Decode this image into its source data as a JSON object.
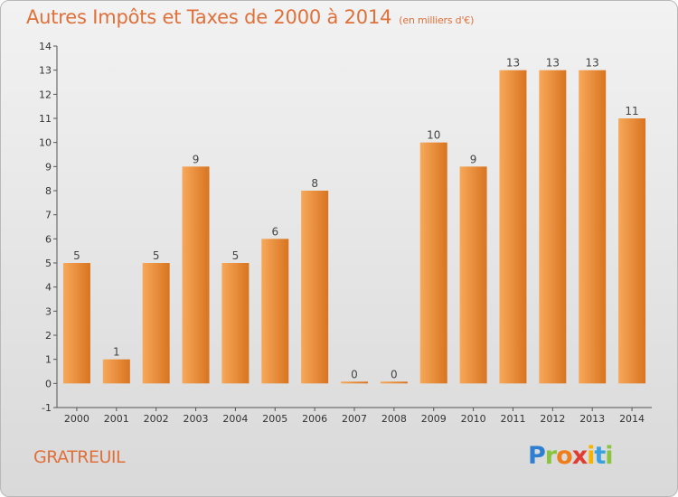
{
  "header": {
    "title": "Autres Impôts et Taxes de 2000 à 2014",
    "unit": "(en milliers d'€)"
  },
  "footer": {
    "commune": "GRATREUIL",
    "logo_letters": [
      "P",
      "r",
      "o",
      "x",
      "i",
      "t",
      "i"
    ]
  },
  "colors": {
    "bar_light": "#f7a85a",
    "bar_dark": "#d8741f",
    "title": "#e0703a"
  },
  "chart_data": {
    "type": "bar",
    "title": "Autres Impôts et Taxes de 2000 à 2014",
    "subtitle": "(en milliers d'€)",
    "xlabel": "",
    "ylabel": "",
    "categories": [
      "2000",
      "2001",
      "2002",
      "2003",
      "2004",
      "2005",
      "2006",
      "2007",
      "2008",
      "2009",
      "2010",
      "2011",
      "2012",
      "2013",
      "2014"
    ],
    "values": [
      5,
      1,
      5,
      9,
      5,
      6,
      8,
      0,
      0,
      10,
      9,
      13,
      13,
      13,
      11
    ],
    "data_labels": [
      "5",
      "1",
      "5",
      "9",
      "5",
      "6",
      "8",
      "0",
      "0",
      "10",
      "9",
      "13",
      "13",
      "13",
      "11"
    ],
    "ylim": [
      -1,
      14
    ],
    "yticks": [
      "-1",
      "0",
      "1",
      "2",
      "3",
      "4",
      "5",
      "6",
      "7",
      "8",
      "9",
      "10",
      "11",
      "12",
      "13",
      "14"
    ],
    "grid": false,
    "legend": "none"
  }
}
